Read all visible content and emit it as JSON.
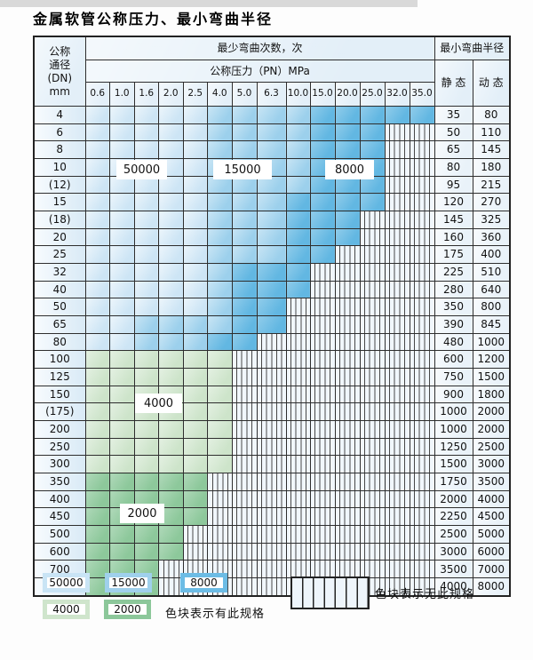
{
  "title": "金属软管公称压力、最小弯曲半径",
  "table": {
    "dn_header": "公称\n通径\n(DN)\nmm",
    "bend_cycles_header": "最少弯曲次数，次",
    "pressure_header": "公称压力（PN）MPa",
    "pressure_columns": [
      "0.6",
      "1.0",
      "1.6",
      "2.0",
      "2.5",
      "4.0",
      "5.0",
      "6.3",
      "10.0",
      "15.0",
      "20.0",
      "25.0",
      "32.0",
      "35.0"
    ],
    "radius_header": "最小弯曲半径",
    "static_header": "静 态",
    "dynamic_header": "动 态",
    "rows": [
      {
        "dn": "4",
        "static": "35",
        "dynamic": "80",
        "cells": [
          "50000",
          "50000",
          "50000",
          "50000",
          "50000",
          "15000",
          "15000",
          "15000",
          "15000",
          "8000",
          "8000",
          "8000",
          "8000",
          "8000"
        ]
      },
      {
        "dn": "6",
        "static": "50",
        "dynamic": "110",
        "cells": [
          "50000",
          "50000",
          "50000",
          "50000",
          "50000",
          "15000",
          "15000",
          "15000",
          "15000",
          "8000",
          "8000",
          "8000",
          "none",
          "none"
        ]
      },
      {
        "dn": "8",
        "static": "65",
        "dynamic": "145",
        "cells": [
          "50000",
          "50000",
          "50000",
          "50000",
          "50000",
          "15000",
          "15000",
          "15000",
          "15000",
          "8000",
          "8000",
          "8000",
          "none",
          "none"
        ]
      },
      {
        "dn": "10",
        "static": "80",
        "dynamic": "180",
        "cells": [
          "50000",
          "50000",
          "50000",
          "50000",
          "50000",
          "15000",
          "15000",
          "15000",
          "15000",
          "8000",
          "8000",
          "8000",
          "none",
          "none"
        ]
      },
      {
        "dn": "(12)",
        "static": "95",
        "dynamic": "215",
        "cells": [
          "50000",
          "50000",
          "50000",
          "50000",
          "50000",
          "15000",
          "15000",
          "15000",
          "15000",
          "8000",
          "8000",
          "8000",
          "none",
          "none"
        ]
      },
      {
        "dn": "15",
        "static": "120",
        "dynamic": "270",
        "cells": [
          "50000",
          "50000",
          "50000",
          "50000",
          "50000",
          "15000",
          "15000",
          "15000",
          "8000",
          "8000",
          "8000",
          "8000",
          "none",
          "none"
        ]
      },
      {
        "dn": "(18)",
        "static": "145",
        "dynamic": "325",
        "cells": [
          "50000",
          "50000",
          "50000",
          "50000",
          "50000",
          "15000",
          "15000",
          "15000",
          "8000",
          "8000",
          "8000",
          "none",
          "none",
          "none"
        ]
      },
      {
        "dn": "20",
        "static": "160",
        "dynamic": "360",
        "cells": [
          "50000",
          "50000",
          "50000",
          "50000",
          "50000",
          "15000",
          "15000",
          "15000",
          "8000",
          "8000",
          "8000",
          "none",
          "none",
          "none"
        ]
      },
      {
        "dn": "25",
        "static": "175",
        "dynamic": "400",
        "cells": [
          "50000",
          "50000",
          "50000",
          "50000",
          "50000",
          "15000",
          "15000",
          "15000",
          "8000",
          "8000",
          "none",
          "none",
          "none",
          "none"
        ]
      },
      {
        "dn": "32",
        "static": "225",
        "dynamic": "510",
        "cells": [
          "50000",
          "50000",
          "50000",
          "50000",
          "50000",
          "15000",
          "8000",
          "8000",
          "8000",
          "none",
          "none",
          "none",
          "none",
          "none"
        ]
      },
      {
        "dn": "40",
        "static": "280",
        "dynamic": "640",
        "cells": [
          "50000",
          "50000",
          "50000",
          "50000",
          "50000",
          "15000",
          "8000",
          "8000",
          "8000",
          "none",
          "none",
          "none",
          "none",
          "none"
        ]
      },
      {
        "dn": "50",
        "static": "350",
        "dynamic": "800",
        "cells": [
          "50000",
          "50000",
          "50000",
          "50000",
          "50000",
          "15000",
          "8000",
          "8000",
          "none",
          "none",
          "none",
          "none",
          "none",
          "none"
        ]
      },
      {
        "dn": "65",
        "static": "390",
        "dynamic": "845",
        "cells": [
          "50000",
          "50000",
          "15000",
          "15000",
          "15000",
          "15000",
          "8000",
          "8000",
          "none",
          "none",
          "none",
          "none",
          "none",
          "none"
        ]
      },
      {
        "dn": "80",
        "static": "480",
        "dynamic": "1000",
        "cells": [
          "50000",
          "50000",
          "15000",
          "15000",
          "15000",
          "8000",
          "8000",
          "none",
          "none",
          "none",
          "none",
          "none",
          "none",
          "none"
        ]
      },
      {
        "dn": "100",
        "static": "600",
        "dynamic": "1200",
        "cells": [
          "4000",
          "4000",
          "4000",
          "4000",
          "4000",
          "4000",
          "none",
          "none",
          "none",
          "none",
          "none",
          "none",
          "none",
          "none"
        ]
      },
      {
        "dn": "125",
        "static": "750",
        "dynamic": "1500",
        "cells": [
          "4000",
          "4000",
          "4000",
          "4000",
          "4000",
          "4000",
          "none",
          "none",
          "none",
          "none",
          "none",
          "none",
          "none",
          "none"
        ]
      },
      {
        "dn": "150",
        "static": "900",
        "dynamic": "1800",
        "cells": [
          "4000",
          "4000",
          "4000",
          "4000",
          "4000",
          "4000",
          "none",
          "none",
          "none",
          "none",
          "none",
          "none",
          "none",
          "none"
        ]
      },
      {
        "dn": "(175)",
        "static": "1000",
        "dynamic": "2000",
        "cells": [
          "4000",
          "4000",
          "4000",
          "4000",
          "4000",
          "4000",
          "none",
          "none",
          "none",
          "none",
          "none",
          "none",
          "none",
          "none"
        ]
      },
      {
        "dn": "200",
        "static": "1000",
        "dynamic": "2000",
        "cells": [
          "4000",
          "4000",
          "4000",
          "4000",
          "4000",
          "4000",
          "none",
          "none",
          "none",
          "none",
          "none",
          "none",
          "none",
          "none"
        ]
      },
      {
        "dn": "250",
        "static": "1250",
        "dynamic": "2500",
        "cells": [
          "4000",
          "4000",
          "4000",
          "4000",
          "4000",
          "4000",
          "none",
          "none",
          "none",
          "none",
          "none",
          "none",
          "none",
          "none"
        ]
      },
      {
        "dn": "300",
        "static": "1500",
        "dynamic": "3000",
        "cells": [
          "4000",
          "4000",
          "4000",
          "4000",
          "4000",
          "4000",
          "none",
          "none",
          "none",
          "none",
          "none",
          "none",
          "none",
          "none"
        ]
      },
      {
        "dn": "350",
        "static": "1750",
        "dynamic": "3500",
        "cells": [
          "2000",
          "2000",
          "2000",
          "2000",
          "2000",
          "none",
          "none",
          "none",
          "none",
          "none",
          "none",
          "none",
          "none",
          "none"
        ]
      },
      {
        "dn": "400",
        "static": "2000",
        "dynamic": "4000",
        "cells": [
          "2000",
          "2000",
          "2000",
          "2000",
          "2000",
          "none",
          "none",
          "none",
          "none",
          "none",
          "none",
          "none",
          "none",
          "none"
        ]
      },
      {
        "dn": "450",
        "static": "2250",
        "dynamic": "4500",
        "cells": [
          "2000",
          "2000",
          "2000",
          "2000",
          "2000",
          "none",
          "none",
          "none",
          "none",
          "none",
          "none",
          "none",
          "none",
          "none"
        ]
      },
      {
        "dn": "500",
        "static": "2500",
        "dynamic": "5000",
        "cells": [
          "2000",
          "2000",
          "2000",
          "2000",
          "none",
          "none",
          "none",
          "none",
          "none",
          "none",
          "none",
          "none",
          "none",
          "none"
        ]
      },
      {
        "dn": "600",
        "static": "3000",
        "dynamic": "6000",
        "cells": [
          "2000",
          "2000",
          "2000",
          "2000",
          "none",
          "none",
          "none",
          "none",
          "none",
          "none",
          "none",
          "none",
          "none",
          "none"
        ]
      },
      {
        "dn": "700",
        "static": "3500",
        "dynamic": "7000",
        "cells": [
          "2000",
          "2000",
          "2000",
          "none",
          "none",
          "none",
          "none",
          "none",
          "none",
          "none",
          "none",
          "none",
          "none",
          "none"
        ]
      },
      {
        "dn": "800",
        "static": "4000",
        "dynamic": "8000",
        "cells": [
          "2000",
          "2000",
          "2000",
          "none",
          "none",
          "none",
          "none",
          "none",
          "none",
          "none",
          "none",
          "none",
          "none",
          "none"
        ]
      }
    ]
  },
  "overlays": {
    "blue_50000": "50000",
    "blue_15000": "15000",
    "blue_8000": "8000",
    "green_4000": "4000",
    "green_2000": "2000"
  },
  "legend": {
    "items": [
      {
        "label": "50000",
        "color": "#c9e4f5"
      },
      {
        "label": "15000",
        "color": "#9fd0ec"
      },
      {
        "label": "8000",
        "color": "#6cbce5"
      },
      {
        "label": "4000",
        "color": "#cfe5cc"
      },
      {
        "label": "2000",
        "color": "#8cc79a"
      }
    ],
    "has_spec_text": "色块表示有此规格",
    "no_spec_text": "色块表示无此规格"
  },
  "colors": {
    "blue_50000": "#cde5f5",
    "blue_15000": "#9cd0ec",
    "blue_8000": "#62b7e2",
    "green_4000": "#cde4ca",
    "green_2000": "#8dc89b",
    "grid_line": "#2e2e2e"
  }
}
